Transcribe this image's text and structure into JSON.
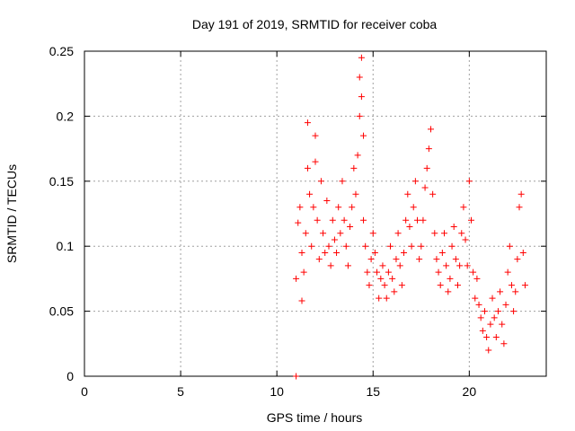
{
  "chart_data": {
    "type": "scatter",
    "title": "Day 191 of 2019, SRMTID for receiver coba",
    "xlabel": "GPS time / hours",
    "ylabel": "SRMTID / TECUs",
    "xlim": [
      0,
      24
    ],
    "ylim": [
      0,
      0.25
    ],
    "xticks": [
      0,
      5,
      10,
      15,
      20
    ],
    "xtick_labels": [
      "0",
      "5",
      "10",
      "15",
      "20"
    ],
    "yticks": [
      0,
      0.05,
      0.1,
      0.15,
      0.2,
      0.25
    ],
    "ytick_labels": [
      "0",
      "0.05",
      "0.1",
      "0.15",
      "0.2",
      "0.25"
    ],
    "grid": true,
    "marker": "+",
    "color": "#ff0000",
    "series": [
      {
        "name": "SRMTID",
        "points": [
          [
            11.0,
            0.0
          ],
          [
            11.0,
            0.075
          ],
          [
            11.1,
            0.118
          ],
          [
            11.2,
            0.13
          ],
          [
            11.3,
            0.095
          ],
          [
            11.3,
            0.058
          ],
          [
            11.4,
            0.08
          ],
          [
            11.5,
            0.11
          ],
          [
            11.6,
            0.16
          ],
          [
            11.6,
            0.195
          ],
          [
            11.7,
            0.14
          ],
          [
            11.8,
            0.1
          ],
          [
            11.9,
            0.13
          ],
          [
            12.0,
            0.165
          ],
          [
            12.0,
            0.185
          ],
          [
            12.1,
            0.12
          ],
          [
            12.2,
            0.09
          ],
          [
            12.3,
            0.15
          ],
          [
            12.4,
            0.11
          ],
          [
            12.5,
            0.095
          ],
          [
            12.6,
            0.135
          ],
          [
            12.7,
            0.1
          ],
          [
            12.8,
            0.085
          ],
          [
            12.9,
            0.12
          ],
          [
            13.0,
            0.105
          ],
          [
            13.1,
            0.095
          ],
          [
            13.2,
            0.13
          ],
          [
            13.3,
            0.11
          ],
          [
            13.4,
            0.15
          ],
          [
            13.5,
            0.12
          ],
          [
            13.6,
            0.1
          ],
          [
            13.7,
            0.085
          ],
          [
            13.8,
            0.115
          ],
          [
            13.9,
            0.13
          ],
          [
            14.0,
            0.16
          ],
          [
            14.1,
            0.14
          ],
          [
            14.2,
            0.17
          ],
          [
            14.3,
            0.2
          ],
          [
            14.3,
            0.23
          ],
          [
            14.4,
            0.245
          ],
          [
            14.4,
            0.215
          ],
          [
            14.5,
            0.185
          ],
          [
            14.5,
            0.12
          ],
          [
            14.6,
            0.1
          ],
          [
            14.7,
            0.08
          ],
          [
            14.8,
            0.07
          ],
          [
            14.9,
            0.09
          ],
          [
            15.0,
            0.11
          ],
          [
            15.1,
            0.095
          ],
          [
            15.2,
            0.08
          ],
          [
            15.3,
            0.06
          ],
          [
            15.4,
            0.075
          ],
          [
            15.5,
            0.085
          ],
          [
            15.6,
            0.07
          ],
          [
            15.7,
            0.06
          ],
          [
            15.8,
            0.08
          ],
          [
            15.9,
            0.1
          ],
          [
            16.0,
            0.075
          ],
          [
            16.1,
            0.065
          ],
          [
            16.2,
            0.09
          ],
          [
            16.3,
            0.11
          ],
          [
            16.4,
            0.085
          ],
          [
            16.5,
            0.07
          ],
          [
            16.6,
            0.095
          ],
          [
            16.7,
            0.12
          ],
          [
            16.8,
            0.14
          ],
          [
            16.9,
            0.115
          ],
          [
            17.0,
            0.1
          ],
          [
            17.1,
            0.13
          ],
          [
            17.2,
            0.15
          ],
          [
            17.3,
            0.12
          ],
          [
            17.4,
            0.09
          ],
          [
            17.5,
            0.1
          ],
          [
            17.6,
            0.12
          ],
          [
            17.7,
            0.145
          ],
          [
            17.8,
            0.16
          ],
          [
            17.9,
            0.175
          ],
          [
            18.0,
            0.19
          ],
          [
            18.1,
            0.14
          ],
          [
            18.2,
            0.11
          ],
          [
            18.3,
            0.09
          ],
          [
            18.4,
            0.08
          ],
          [
            18.5,
            0.07
          ],
          [
            18.6,
            0.095
          ],
          [
            18.7,
            0.11
          ],
          [
            18.8,
            0.085
          ],
          [
            18.9,
            0.065
          ],
          [
            19.0,
            0.075
          ],
          [
            19.1,
            0.1
          ],
          [
            19.2,
            0.115
          ],
          [
            19.3,
            0.09
          ],
          [
            19.4,
            0.07
          ],
          [
            19.5,
            0.085
          ],
          [
            19.6,
            0.11
          ],
          [
            19.7,
            0.13
          ],
          [
            19.8,
            0.105
          ],
          [
            19.9,
            0.085
          ],
          [
            20.0,
            0.15
          ],
          [
            20.1,
            0.12
          ],
          [
            20.2,
            0.08
          ],
          [
            20.3,
            0.06
          ],
          [
            20.4,
            0.075
          ],
          [
            20.5,
            0.055
          ],
          [
            20.6,
            0.045
          ],
          [
            20.7,
            0.035
          ],
          [
            20.8,
            0.05
          ],
          [
            20.9,
            0.03
          ],
          [
            21.0,
            0.02
          ],
          [
            21.1,
            0.04
          ],
          [
            21.2,
            0.06
          ],
          [
            21.3,
            0.045
          ],
          [
            21.4,
            0.03
          ],
          [
            21.5,
            0.05
          ],
          [
            21.6,
            0.065
          ],
          [
            21.7,
            0.04
          ],
          [
            21.8,
            0.025
          ],
          [
            21.9,
            0.055
          ],
          [
            22.0,
            0.08
          ],
          [
            22.1,
            0.1
          ],
          [
            22.2,
            0.07
          ],
          [
            22.3,
            0.05
          ],
          [
            22.4,
            0.065
          ],
          [
            22.5,
            0.09
          ],
          [
            22.6,
            0.13
          ],
          [
            22.7,
            0.14
          ],
          [
            22.8,
            0.095
          ],
          [
            22.9,
            0.07
          ]
        ]
      }
    ]
  }
}
